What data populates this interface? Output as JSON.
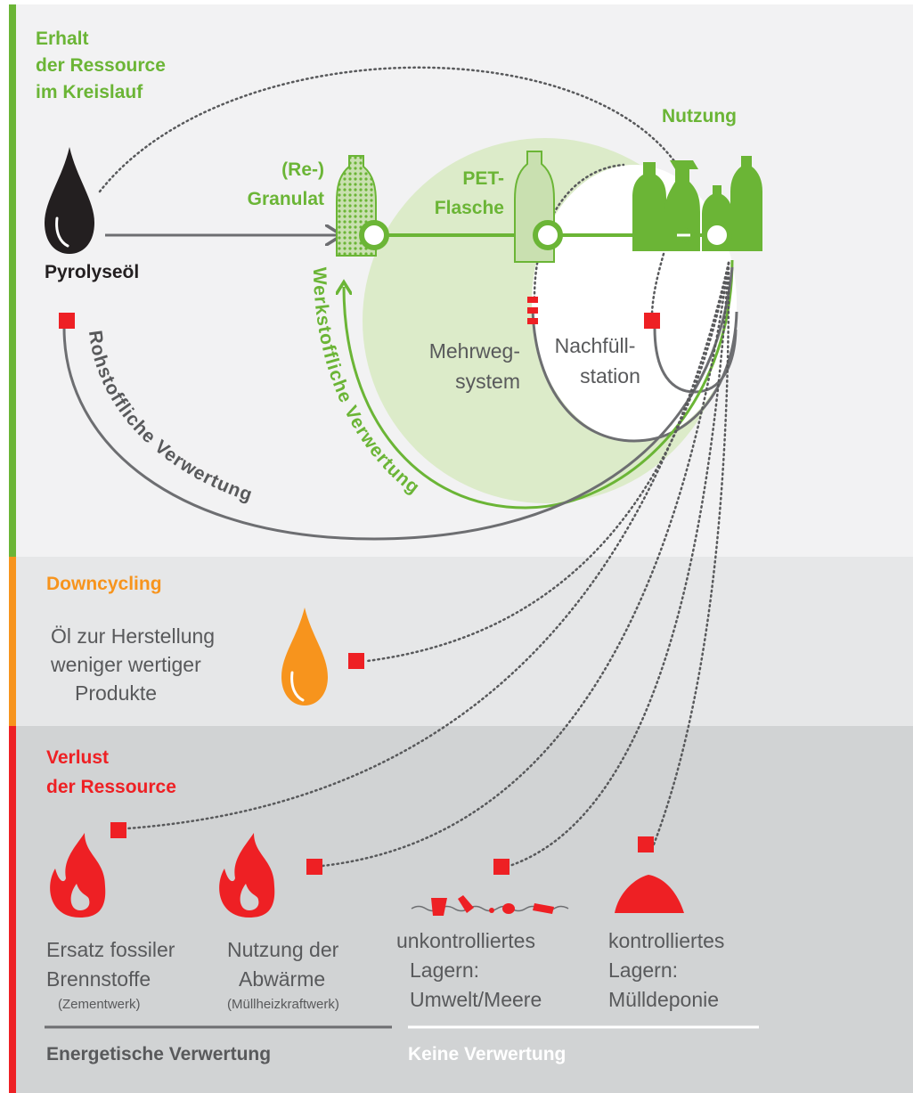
{
  "sections": {
    "kreislauf": [
      "Erhalt",
      "der Ressource",
      "im Kreislauf"
    ],
    "downcycling": "Downcycling",
    "verlust": [
      "Verlust",
      "der Ressource"
    ]
  },
  "kreislauf": {
    "pyrolyseoel": "Pyrolyseöl",
    "granulat": [
      "(Re-)",
      "Granulat"
    ],
    "flasche": [
      "PET-",
      "Flasche"
    ],
    "nutzung": "Nutzung",
    "mehrweg": [
      "Mehrweg-",
      "system"
    ],
    "nachfuell": [
      "Nachfüll-",
      "station"
    ],
    "werkstofflich": "Werkstoffliche Verwertung",
    "rohstofflich": "Rohstoffliche Verwertung"
  },
  "downcycling": {
    "text": [
      "Öl zur Herstellung",
      "weniger wertiger",
      "Produkte"
    ]
  },
  "verlust": {
    "items": [
      {
        "lines": [
          "Ersatz fossiler",
          "Brennstoffe"
        ],
        "note": "(Zementwerk)"
      },
      {
        "lines": [
          "Nutzung der",
          "Abwärme"
        ],
        "note": "(Müllheizkraftwerk)"
      },
      {
        "lines": [
          "unkontrolliertes",
          "Lagern:",
          "Umwelt/Meere"
        ]
      },
      {
        "lines": [
          "kontrolliertes",
          "Lagern:",
          "Mülldeponie"
        ]
      }
    ],
    "groups": [
      "Energetische Verwertung",
      "Keine Verwertung"
    ]
  }
}
